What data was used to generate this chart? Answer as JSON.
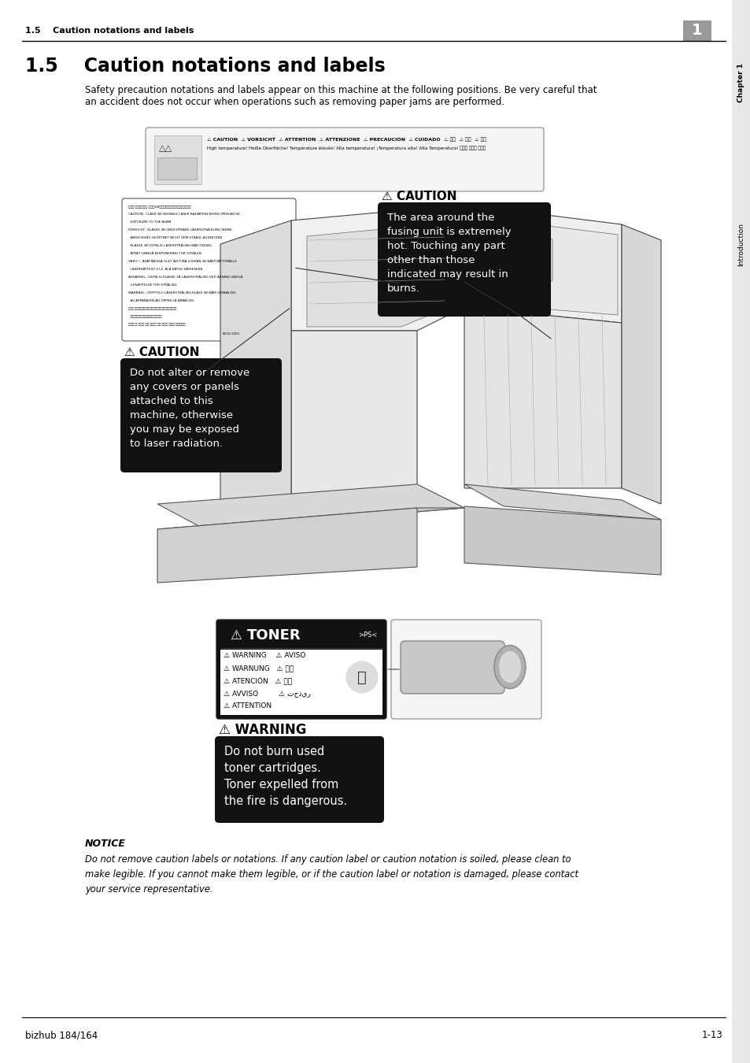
{
  "page_bg": "#ffffff",
  "header_section_text": "1.5    Caution notations and labels",
  "chapter_number": "1",
  "side_tab_text": "Chapter 1",
  "side_tab2_text": "Introduction",
  "section_title": "1.5    Caution notations and labels",
  "intro_line1": "Safety precaution notations and labels appear on this machine at the following positions. Be very careful that",
  "intro_line2": "an accident does not occur when operations such as removing paper jams are performed.",
  "caution1_title": "⚠ CAUTION",
  "caution1_body": "Do not alter or remove\nany covers or panels\nattached to this\nmachine, otherwise\nyou may be exposed\nto laser radiation.",
  "caution2_title": "⚠ CAUTION",
  "caution2_body": "The area around the\nfusing unit is extremely\nhot. Touching any part\nother than those\nindicated may result in\nburns.",
  "warning_title": "⚠ WARNING",
  "warning_body": "Do not burn used\ntoner cartridges.\nToner expelled from\nthe fire is dangerous.",
  "toner_label_header": "TONER",
  "toner_label_ps": ">PS<",
  "toner_lines": [
    "⚠ WARNING    ⚠ AVISO",
    "⚠ WARNUNG   ⚠ 警告",
    "⚠ ATENCIÓN   ⚠ 경고",
    "⚠ AVVISO         ⚠ تحذير",
    "⚠ ATTENTION"
  ],
  "notice_title": "NOTICE",
  "notice_body": "Do not remove caution labels or notations. If any caution label or caution notation is soiled, please clean to\nmake legible. If you cannot make them legible, or if the caution label or notation is damaged, please contact\nyour service representative.",
  "footer_left": "bizhub 184/164",
  "footer_right": "1-13",
  "black_box_color": "#111111",
  "white_text": "#ffffff",
  "dark_text": "#000000",
  "gray_light": "#f2f2f2",
  "gray_mid": "#cccccc",
  "gray_dark": "#888888"
}
